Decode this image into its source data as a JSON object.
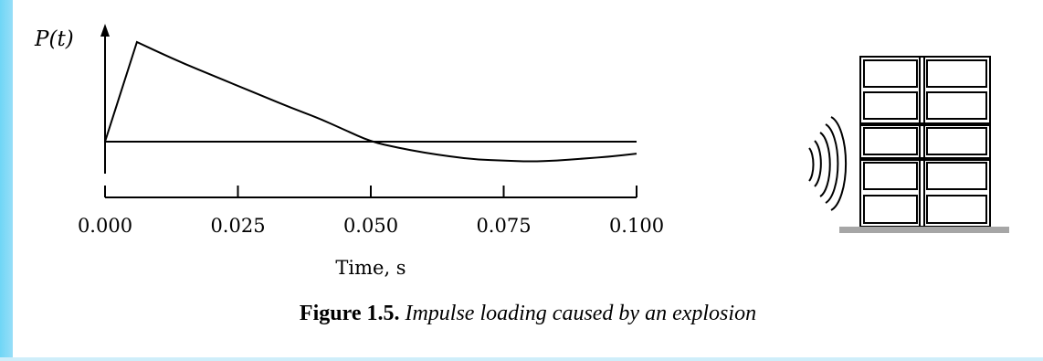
{
  "chart_data": {
    "type": "line",
    "ylabel": "P(t)",
    "xlabel": "Time, s",
    "xlim": [
      0.0,
      0.1
    ],
    "xticks": [
      "0.000",
      "0.025",
      "0.050",
      "0.075",
      "0.100"
    ],
    "series": [
      {
        "x": [
          0.0,
          0.006,
          0.01,
          0.015,
          0.02,
          0.025,
          0.03,
          0.035,
          0.04,
          0.045,
          0.05,
          0.055,
          0.06,
          0.065,
          0.07,
          0.075,
          0.08,
          0.085,
          0.09,
          0.095,
          0.1
        ],
        "y": [
          0.0,
          1.0,
          0.9,
          0.78,
          0.67,
          0.56,
          0.45,
          0.34,
          0.24,
          0.12,
          0.0,
          -0.06,
          -0.11,
          -0.15,
          -0.18,
          -0.19,
          -0.2,
          -0.19,
          -0.17,
          -0.15,
          -0.12
        ]
      }
    ]
  },
  "caption": {
    "number": "Figure 1.5.",
    "text": "Impulse loading caused by an explosion"
  },
  "colors": {
    "background": "#b7e7fb",
    "panel": "#ffffff",
    "ground": "#a6a6a6",
    "ink": "#000000"
  }
}
